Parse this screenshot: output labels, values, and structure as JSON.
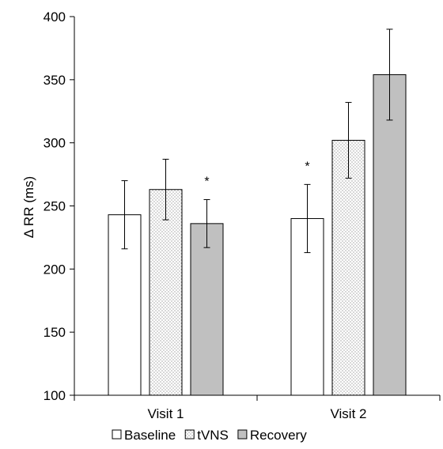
{
  "chart_data": {
    "type": "bar",
    "title": "",
    "xlabel": "",
    "ylabel": "Δ RR (ms)",
    "ylim": [
      100,
      400
    ],
    "yticks": [
      100,
      150,
      200,
      250,
      300,
      350,
      400
    ],
    "ytick_labels": [
      "100",
      "150",
      "200",
      "250",
      "300",
      "350",
      "400"
    ],
    "grid": false,
    "legend_position": "bottom",
    "categories": [
      "Visit 1",
      "Visit 2"
    ],
    "series": [
      {
        "name": "Baseline",
        "values": [
          243,
          240
        ],
        "errors": [
          27,
          27
        ],
        "fill": "white",
        "significance": [
          "",
          "*"
        ]
      },
      {
        "name": "tVNS",
        "values": [
          263,
          302
        ],
        "errors": [
          24,
          30
        ],
        "fill": "dotted",
        "significance": [
          "",
          ""
        ]
      },
      {
        "name": "Recovery",
        "values": [
          236,
          354
        ],
        "errors": [
          19,
          36
        ],
        "fill": "#c0c0c0",
        "significance": [
          "*",
          ""
        ]
      }
    ]
  }
}
